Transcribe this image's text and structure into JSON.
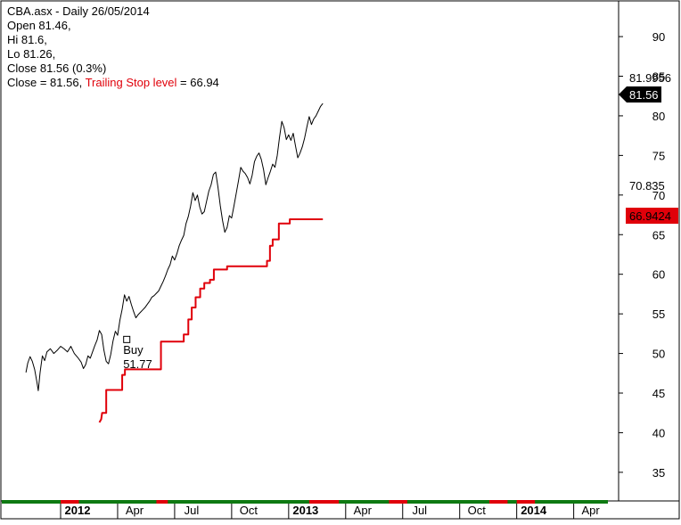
{
  "header": {
    "line1": "CBA.asx - Daily 26/05/2014",
    "line2": "Open 81.46,",
    "line3": "Hi 81.6,",
    "line4": "Lo 81.26,",
    "line5": "Close 81.56 (0.3%)",
    "line6_prefix": "Close = 81.56, ",
    "line6_stop_label": "Trailing Stop level",
    "line6_suffix": " = 66.94"
  },
  "price_labels": {
    "high": "81.9956",
    "close": "81.56",
    "low": "70.835",
    "stop": "66.9424"
  },
  "buy_annotation": {
    "label": "Buy",
    "price": "51.77",
    "date": "2012.29",
    "level": 51.77
  },
  "colors": {
    "price_line": "#000000",
    "stop_line": "#e0000a",
    "close_marker": "#000000",
    "stop_marker": "#e0000a",
    "timeline_green": "#0e7a12",
    "timeline_red": "#e0000a"
  },
  "chart_data": {
    "type": "line",
    "title": "CBA.asx - Daily 26/05/2014",
    "ylim": [
      31.5,
      94
    ],
    "xlim": [
      2011.99,
      2014.41
    ],
    "y_ticks": [
      35,
      40,
      45,
      50,
      55,
      60,
      65,
      70,
      75,
      80,
      85,
      90
    ],
    "x_ticks": [
      {
        "label": "2012",
        "x": 2012.0,
        "bold": true
      },
      {
        "label": "Apr",
        "x": 2012.25,
        "bold": false
      },
      {
        "label": "Jul",
        "x": 2012.5,
        "bold": false
      },
      {
        "label": "Oct",
        "x": 2012.75,
        "bold": false
      },
      {
        "label": "2013",
        "x": 2013.0,
        "bold": true
      },
      {
        "label": "Apr",
        "x": 2013.25,
        "bold": false
      },
      {
        "label": "Jul",
        "x": 2013.5,
        "bold": false
      },
      {
        "label": "Oct",
        "x": 2013.75,
        "bold": false
      },
      {
        "label": "2014",
        "x": 2014.0,
        "bold": true
      },
      {
        "label": "Apr",
        "x": 2014.25,
        "bold": false
      }
    ],
    "grid": false,
    "series": [
      {
        "name": "Close",
        "points": [
          [
            1.848,
            47.6
          ],
          [
            1.856,
            48.8
          ],
          [
            1.866,
            49.6
          ],
          [
            1.876,
            49.0
          ],
          [
            1.886,
            48.0
          ],
          [
            1.896,
            46.4
          ],
          [
            1.902,
            45.3
          ],
          [
            1.91,
            47.6
          ],
          [
            1.92,
            49.7
          ],
          [
            1.93,
            49.1
          ],
          [
            1.94,
            50.2
          ],
          [
            1.955,
            50.6
          ],
          [
            1.97,
            50.0
          ],
          [
            1.985,
            50.4
          ],
          [
            2.0,
            50.9
          ],
          [
            2.015,
            50.6
          ],
          [
            2.03,
            50.2
          ],
          [
            2.045,
            50.9
          ],
          [
            2.06,
            50.0
          ],
          [
            2.075,
            49.5
          ],
          [
            2.09,
            48.9
          ],
          [
            2.1,
            48.1
          ],
          [
            2.11,
            48.6
          ],
          [
            2.12,
            49.7
          ],
          [
            2.13,
            49.4
          ],
          [
            2.14,
            50.2
          ],
          [
            2.15,
            51.0
          ],
          [
            2.16,
            51.7
          ],
          [
            2.17,
            52.9
          ],
          [
            2.18,
            52.4
          ],
          [
            2.19,
            50.4
          ],
          [
            2.2,
            49.0
          ],
          [
            2.21,
            48.7
          ],
          [
            2.22,
            49.9
          ],
          [
            2.23,
            51.6
          ],
          [
            2.24,
            52.8
          ],
          [
            2.25,
            52.3
          ],
          [
            2.26,
            54.2
          ],
          [
            2.27,
            55.6
          ],
          [
            2.28,
            57.4
          ],
          [
            2.29,
            56.6
          ],
          [
            2.3,
            57.2
          ],
          [
            2.31,
            56.2
          ],
          [
            2.32,
            55.3
          ],
          [
            2.33,
            54.5
          ],
          [
            2.34,
            54.9
          ],
          [
            2.35,
            55.2
          ],
          [
            2.36,
            55.5
          ],
          [
            2.37,
            55.8
          ],
          [
            2.38,
            56.2
          ],
          [
            2.39,
            56.6
          ],
          [
            2.4,
            57.1
          ],
          [
            2.41,
            57.3
          ],
          [
            2.42,
            57.6
          ],
          [
            2.43,
            57.9
          ],
          [
            2.44,
            58.5
          ],
          [
            2.45,
            59.1
          ],
          [
            2.46,
            59.8
          ],
          [
            2.47,
            60.6
          ],
          [
            2.48,
            61.2
          ],
          [
            2.49,
            62.3
          ],
          [
            2.5,
            61.8
          ],
          [
            2.51,
            62.6
          ],
          [
            2.52,
            63.6
          ],
          [
            2.53,
            64.3
          ],
          [
            2.54,
            64.9
          ],
          [
            2.55,
            66.4
          ],
          [
            2.56,
            67.3
          ],
          [
            2.57,
            68.6
          ],
          [
            2.58,
            70.3
          ],
          [
            2.59,
            69.3
          ],
          [
            2.6,
            70.0
          ],
          [
            2.61,
            68.5
          ],
          [
            2.62,
            67.6
          ],
          [
            2.63,
            67.9
          ],
          [
            2.64,
            69.2
          ],
          [
            2.65,
            70.5
          ],
          [
            2.66,
            71.3
          ],
          [
            2.67,
            72.6
          ],
          [
            2.68,
            72.9
          ],
          [
            2.69,
            71.0
          ],
          [
            2.7,
            68.7
          ],
          [
            2.71,
            66.8
          ],
          [
            2.72,
            65.3
          ],
          [
            2.73,
            65.9
          ],
          [
            2.74,
            67.4
          ],
          [
            2.75,
            67.1
          ],
          [
            2.76,
            68.6
          ],
          [
            2.77,
            70.2
          ],
          [
            2.78,
            71.8
          ],
          [
            2.79,
            73.5
          ],
          [
            2.8,
            73.0
          ],
          [
            2.81,
            72.7
          ],
          [
            2.82,
            72.2
          ],
          [
            2.83,
            71.4
          ],
          [
            2.84,
            72.5
          ],
          [
            2.85,
            74.2
          ],
          [
            2.86,
            74.9
          ],
          [
            2.87,
            75.3
          ],
          [
            2.88,
            74.5
          ],
          [
            2.89,
            73.2
          ],
          [
            2.9,
            71.3
          ],
          [
            2.91,
            72.2
          ],
          [
            2.92,
            73.0
          ],
          [
            2.93,
            73.9
          ],
          [
            2.94,
            73.5
          ],
          [
            2.95,
            75.0
          ],
          [
            2.96,
            77.3
          ],
          [
            2.97,
            79.3
          ],
          [
            2.98,
            78.5
          ],
          [
            2.99,
            77.0
          ],
          [
            3.0,
            77.6
          ],
          [
            3.01,
            76.9
          ],
          [
            3.02,
            77.8
          ],
          [
            3.03,
            76.2
          ],
          [
            3.04,
            74.7
          ],
          [
            3.05,
            75.3
          ],
          [
            3.06,
            76.1
          ],
          [
            3.07,
            77.2
          ],
          [
            3.08,
            78.6
          ],
          [
            3.09,
            79.9
          ],
          [
            3.1,
            78.9
          ],
          [
            3.11,
            79.6
          ],
          [
            3.12,
            80.0
          ],
          [
            3.13,
            80.6
          ],
          [
            3.14,
            81.2
          ],
          [
            3.15,
            81.56
          ]
        ]
      },
      {
        "name": "Trailing Stop level",
        "points": [
          [
            2.17,
            41.3
          ],
          [
            2.178,
            41.7
          ],
          [
            2.182,
            42.5
          ],
          [
            2.2,
            42.5
          ],
          [
            2.2,
            45.4
          ],
          [
            2.27,
            45.4
          ],
          [
            2.27,
            47.3
          ],
          [
            2.282,
            47.3
          ],
          [
            2.282,
            48.0
          ],
          [
            2.44,
            48.0
          ],
          [
            2.44,
            51.5
          ],
          [
            2.54,
            51.5
          ],
          [
            2.54,
            52.4
          ],
          [
            2.56,
            52.4
          ],
          [
            2.56,
            54.3
          ],
          [
            2.575,
            54.3
          ],
          [
            2.575,
            55.8
          ],
          [
            2.592,
            55.8
          ],
          [
            2.592,
            57.1
          ],
          [
            2.612,
            57.1
          ],
          [
            2.612,
            58.2
          ],
          [
            2.63,
            58.2
          ],
          [
            2.63,
            58.9
          ],
          [
            2.655,
            58.9
          ],
          [
            2.655,
            59.3
          ],
          [
            2.672,
            59.3
          ],
          [
            2.672,
            60.6
          ],
          [
            2.73,
            60.6
          ],
          [
            2.73,
            61.0
          ],
          [
            2.905,
            61.0
          ],
          [
            2.905,
            61.7
          ],
          [
            2.918,
            61.7
          ],
          [
            2.918,
            63.6
          ],
          [
            2.93,
            63.6
          ],
          [
            2.93,
            64.4
          ],
          [
            2.957,
            64.4
          ],
          [
            2.957,
            66.4
          ],
          [
            3.005,
            66.4
          ],
          [
            3.005,
            66.94
          ],
          [
            3.15,
            66.94
          ]
        ]
      }
    ]
  }
}
